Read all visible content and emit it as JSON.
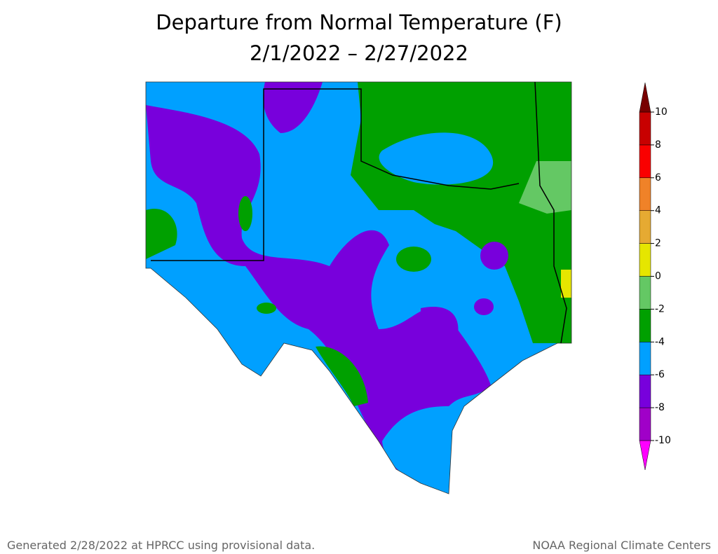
{
  "title": [
    "Departure from Normal Temperature (F)",
    "2/1/2022 – 2/27/2022"
  ],
  "legend": {
    "ticks": [
      -10,
      -8,
      -6,
      -4,
      -2,
      0,
      2,
      4,
      6,
      8,
      10
    ],
    "colors": [
      "#ff00ff",
      "#a000c8",
      "#7800dc",
      "#00a0ff",
      "#00a000",
      "#64c864",
      "#e6e600",
      "#e6aa32",
      "#f08228",
      "#fa0000",
      "#c80000",
      "#780000"
    ]
  },
  "footer": {
    "left": "Generated 2/28/2022 at HPRCC using provisional data.",
    "right": "NOAA Regional Climate Centers"
  }
}
